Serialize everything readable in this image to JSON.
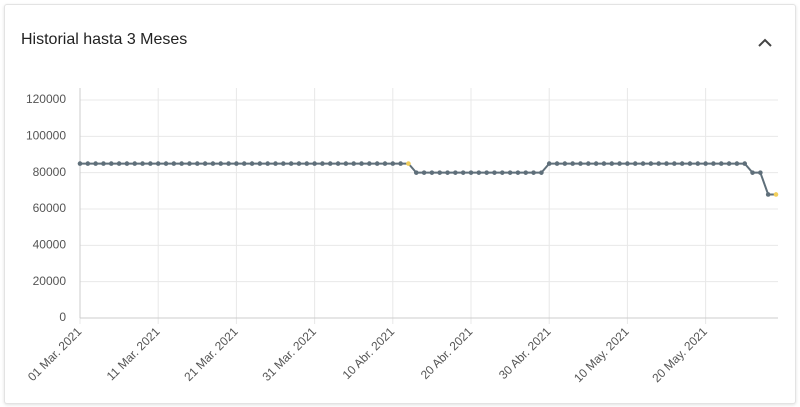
{
  "chart_data": {
    "type": "line",
    "title": "Historial hasta 3 Meses",
    "x": [
      "2021-03-01",
      "2021-03-02",
      "2021-03-03",
      "2021-03-04",
      "2021-03-05",
      "2021-03-06",
      "2021-03-07",
      "2021-03-08",
      "2021-03-09",
      "2021-03-10",
      "2021-03-11",
      "2021-03-12",
      "2021-03-13",
      "2021-03-14",
      "2021-03-15",
      "2021-03-16",
      "2021-03-17",
      "2021-03-18",
      "2021-03-19",
      "2021-03-20",
      "2021-03-21",
      "2021-03-22",
      "2021-03-23",
      "2021-03-24",
      "2021-03-25",
      "2021-03-26",
      "2021-03-27",
      "2021-03-28",
      "2021-03-29",
      "2021-03-30",
      "2021-03-31",
      "2021-04-01",
      "2021-04-02",
      "2021-04-03",
      "2021-04-04",
      "2021-04-05",
      "2021-04-06",
      "2021-04-07",
      "2021-04-08",
      "2021-04-09",
      "2021-04-10",
      "2021-04-11",
      "2021-04-12",
      "2021-04-13",
      "2021-04-14",
      "2021-04-15",
      "2021-04-16",
      "2021-04-17",
      "2021-04-18",
      "2021-04-19",
      "2021-04-20",
      "2021-04-21",
      "2021-04-22",
      "2021-04-23",
      "2021-04-24",
      "2021-04-25",
      "2021-04-26",
      "2021-04-27",
      "2021-04-28",
      "2021-04-29",
      "2021-04-30",
      "2021-05-01",
      "2021-05-02",
      "2021-05-03",
      "2021-05-04",
      "2021-05-05",
      "2021-05-06",
      "2021-05-07",
      "2021-05-08",
      "2021-05-09",
      "2021-05-10",
      "2021-05-11",
      "2021-05-12",
      "2021-05-13",
      "2021-05-14",
      "2021-05-15",
      "2021-05-16",
      "2021-05-17",
      "2021-05-18",
      "2021-05-19",
      "2021-05-20",
      "2021-05-21",
      "2021-05-22",
      "2021-05-23",
      "2021-05-24",
      "2021-05-25",
      "2021-05-26",
      "2021-05-27",
      "2021-05-28",
      "2021-05-29"
    ],
    "values": [
      85000,
      85000,
      85000,
      85000,
      85000,
      85000,
      85000,
      85000,
      85000,
      85000,
      85000,
      85000,
      85000,
      85000,
      85000,
      85000,
      85000,
      85000,
      85000,
      85000,
      85000,
      85000,
      85000,
      85000,
      85000,
      85000,
      85000,
      85000,
      85000,
      85000,
      85000,
      85000,
      85000,
      85000,
      85000,
      85000,
      85000,
      85000,
      85000,
      85000,
      85000,
      85000,
      85000,
      80000,
      80000,
      80000,
      80000,
      80000,
      80000,
      80000,
      80000,
      80000,
      80000,
      80000,
      80000,
      80000,
      80000,
      80000,
      80000,
      80000,
      85000,
      85000,
      85000,
      85000,
      85000,
      85000,
      85000,
      85000,
      85000,
      85000,
      85000,
      85000,
      85000,
      85000,
      85000,
      85000,
      85000,
      85000,
      85000,
      85000,
      85000,
      85000,
      85000,
      85000,
      85000,
      85000,
      80000,
      80000,
      68000,
      68000
    ],
    "color": "#5f6f7a",
    "highlight": {
      "color": "#f2cf5b",
      "x": [
        "2021-04-12",
        "2021-05-29"
      ]
    },
    "xlim": [
      "2021-03-01",
      "2021-05-29"
    ],
    "xticks": [
      {
        "value": "2021-03-01",
        "label": "01 Mar. 2021"
      },
      {
        "value": "2021-03-11",
        "label": "11 Mar. 2021"
      },
      {
        "value": "2021-03-21",
        "label": "21 Mar. 2021"
      },
      {
        "value": "2021-03-31",
        "label": "31 Mar. 2021"
      },
      {
        "value": "2021-04-10",
        "label": "10 Abr. 2021"
      },
      {
        "value": "2021-04-20",
        "label": "20 Abr. 2021"
      },
      {
        "value": "2021-04-30",
        "label": "30 Abr. 2021"
      },
      {
        "value": "2021-05-10",
        "label": "10 May. 2021"
      },
      {
        "value": "2021-05-20",
        "label": "20 May. 2021"
      }
    ],
    "ylim": [
      0,
      120000
    ],
    "yticks": [
      0,
      20000,
      40000,
      60000,
      80000,
      100000,
      120000
    ],
    "grid": true
  }
}
